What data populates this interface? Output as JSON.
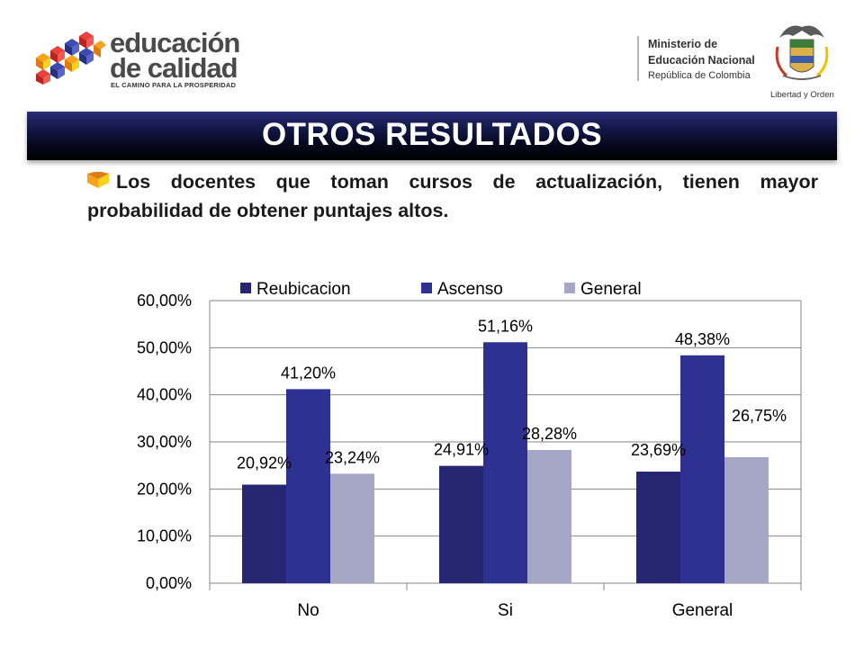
{
  "header": {
    "brand_left": {
      "line1": "educación",
      "line2": "de calidad",
      "tagline": "EL CAMINO PARA LA PROSPERIDAD"
    },
    "brand_right": {
      "line1": "Ministerio de",
      "line2": "Educación Nacional",
      "line3": "República de Colombia",
      "motto": "Libertad y Orden"
    }
  },
  "title": "OTROS RESULTADOS",
  "intro_text": "Los docentes que toman cursos de actualización, tienen mayor probabilidad de obtener puntajes altos.",
  "colors": {
    "banner": "#0b0e2e",
    "reubicacion": "#262673",
    "ascenso": "#2e3192",
    "general": "#a6a6c6",
    "bullet_orange": "#f7a21b",
    "bullet_yellow": "#f8d11e"
  },
  "chart_data": {
    "type": "bar",
    "categories": [
      "No",
      "Si",
      "General"
    ],
    "series": [
      {
        "name": "Reubicacion",
        "values": [
          20.92,
          24.91,
          23.69
        ],
        "labels": [
          "20,92%",
          "24,91%",
          "23,69%"
        ],
        "color": "#262673"
      },
      {
        "name": "Ascenso",
        "values": [
          41.2,
          51.16,
          48.38
        ],
        "labels": [
          "41,20%",
          "51,16%",
          "48,38%"
        ],
        "color": "#2e3192"
      },
      {
        "name": "General",
        "values": [
          23.24,
          28.28,
          26.75
        ],
        "labels": [
          "23,24%",
          "28,28%",
          "26,75%"
        ],
        "color": "#a6a6c6"
      }
    ],
    "y_ticks": [
      "0,00%",
      "10,00%",
      "20,00%",
      "30,00%",
      "40,00%",
      "50,00%",
      "60,00%"
    ],
    "ylim": [
      0,
      60
    ],
    "legend_position": "top",
    "grid": true
  }
}
